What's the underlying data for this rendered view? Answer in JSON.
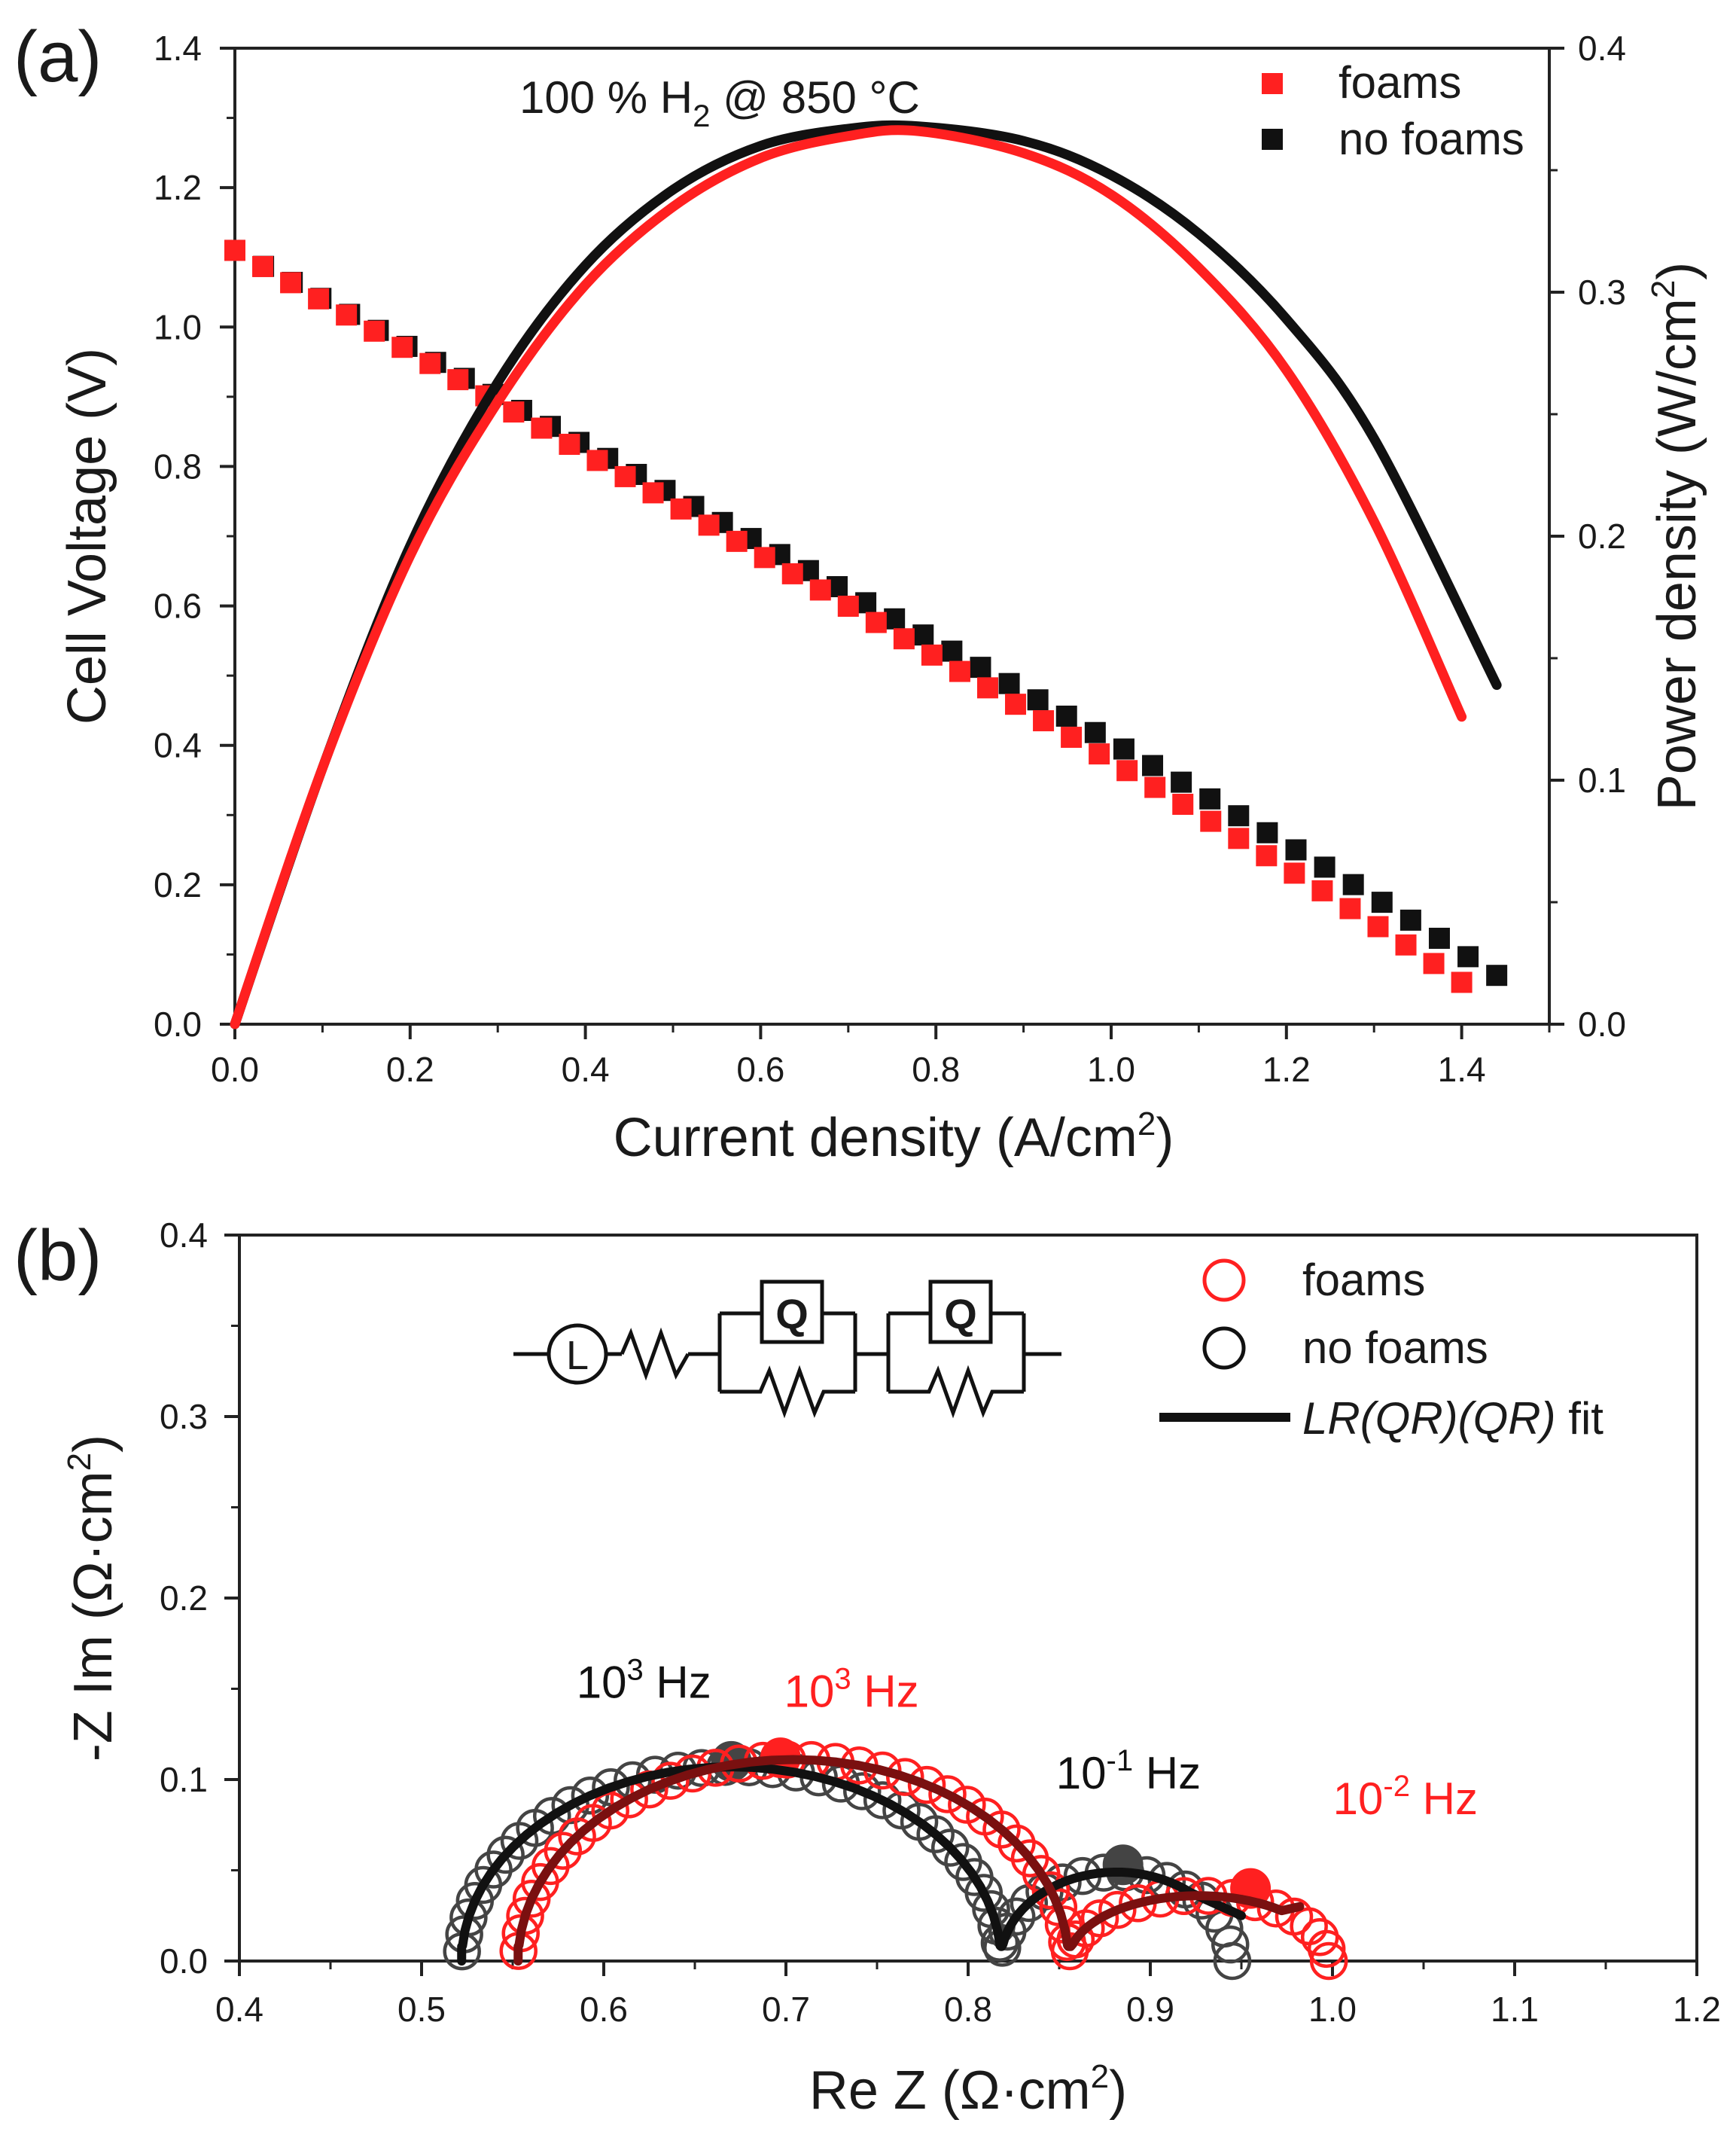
{
  "colors": {
    "foams": "#ff2020",
    "no_foams": "#111111",
    "fit_no_foams": "#111111",
    "fit_foams": "#7a1010",
    "axis": "#222222",
    "nyquist_no_foams_marker": "#444444"
  },
  "chart_data": [
    {
      "panel": "(a)",
      "type": "scatter+line",
      "title": "100 % H2 @ 850 °C",
      "title_parts": {
        "main": "100 % H",
        "sub": "2",
        "rest": " @ 850 °C"
      },
      "xlabel": "Current density (A/cm2)",
      "xlabel_parts": {
        "main": "Current density (A/cm",
        "sup": "2",
        "rest": ")"
      },
      "ylabel": "Cell Voltage (V)",
      "y2label": "Power density (W/cm2)",
      "y2label_parts": {
        "main": "Power density (W/cm",
        "sup": "2",
        "rest": ")"
      },
      "xlim": [
        0.0,
        1.5
      ],
      "ylim": [
        0.0,
        1.4
      ],
      "y2lim": [
        0.0,
        0.4
      ],
      "xticks": [
        "0.0",
        "0.2",
        "0.4",
        "0.6",
        "0.8",
        "1.0",
        "1.2",
        "1.4"
      ],
      "yticks": [
        "0.0",
        "0.2",
        "0.4",
        "0.6",
        "0.8",
        "1.0",
        "1.2",
        "1.4"
      ],
      "y2ticks": [
        "0.0",
        "0.1",
        "0.2",
        "0.3",
        "0.4"
      ],
      "legend": {
        "position": "top-right",
        "entries": [
          "foams",
          "no foams"
        ]
      },
      "series": [
        {
          "name": "foams",
          "kind": "voltage",
          "marker": "square",
          "voc": 1.11,
          "x_end": 1.4,
          "y_end": 0.09,
          "n_points": 45
        },
        {
          "name": "no foams",
          "kind": "voltage",
          "marker": "square",
          "voc": 1.11,
          "x_end": 1.44,
          "y_end": 0.1,
          "n_points": 45
        },
        {
          "name": "foams",
          "kind": "power",
          "x": [
            0.0,
            0.1,
            0.2,
            0.3,
            0.4,
            0.5,
            0.6,
            0.7,
            0.78,
            0.9,
            1.0,
            1.1,
            1.2,
            1.3,
            1.4
          ],
          "y": [
            0.0,
            0.105,
            0.192,
            0.255,
            0.303,
            0.335,
            0.355,
            0.364,
            0.366,
            0.357,
            0.34,
            0.31,
            0.268,
            0.206,
            0.126
          ]
        },
        {
          "name": "no foams",
          "kind": "power",
          "x": [
            0.0,
            0.1,
            0.2,
            0.3,
            0.4,
            0.5,
            0.6,
            0.7,
            0.78,
            0.9,
            1.0,
            1.1,
            1.2,
            1.3,
            1.44
          ],
          "y": [
            0.0,
            0.105,
            0.196,
            0.263,
            0.311,
            0.342,
            0.36,
            0.367,
            0.368,
            0.362,
            0.348,
            0.324,
            0.289,
            0.24,
            0.139
          ]
        }
      ]
    },
    {
      "panel": "(b)",
      "type": "scatter+line",
      "xlabel": "Re Z (Ω·cm2)",
      "xlabel_parts": {
        "main": "Re Z (Ω·cm",
        "sup": "2",
        "rest": ")"
      },
      "ylabel": "-Z Im (Ω·cm2)",
      "ylabel_parts": {
        "main": "-Z Im (Ω·cm",
        "sup": "2",
        "rest": ")"
      },
      "xlim": [
        0.4,
        1.2
      ],
      "ylim": [
        0.0,
        0.4
      ],
      "xticks": [
        "0.4",
        "0.5",
        "0.6",
        "0.7",
        "0.8",
        "0.9",
        "1.0",
        "1.1",
        "1.2"
      ],
      "yticks": [
        "0.0",
        "0.1",
        "0.2",
        "0.3",
        "0.4"
      ],
      "legend": {
        "position": "top-right",
        "entries": [
          "foams",
          "no foams",
          "LR(QR)(QR) fit"
        ]
      },
      "legend_fit_italic": "LR(QR)(QR)",
      "legend_fit_suffix": " fit",
      "circuit": "L R (QR) (QR)",
      "circuit_q_label": "Q",
      "circuit_l_label": "L",
      "series": [
        {
          "name": "no foams",
          "arcs": [
            {
              "x_start": 0.522,
              "x_end": 0.818,
              "apex_y": 0.107
            },
            {
              "x_start": 0.818,
              "x_end": 0.945,
              "apex_y": 0.049
            }
          ],
          "fit_x_end": 0.95,
          "fit_y_end": 0.025,
          "highlight": [
            {
              "x": 0.67,
              "y": 0.11
            },
            {
              "x": 0.885,
              "y": 0.053
            }
          ]
        },
        {
          "name": "foams",
          "arcs": [
            {
              "x_start": 0.553,
              "x_end": 0.855,
              "apex_y": 0.111
            },
            {
              "x_start": 0.855,
              "x_end": 0.998,
              "apex_y": 0.036
            }
          ],
          "fit_x_end": 0.982,
          "fit_y_end": 0.03,
          "highlight": [
            {
              "x": 0.697,
              "y": 0.112
            },
            {
              "x": 0.955,
              "y": 0.04
            }
          ]
        }
      ],
      "annotations": [
        {
          "series": "no foams",
          "base": "10",
          "exp": "3",
          "unit": " Hz",
          "x": 0.622,
          "y": 0.145
        },
        {
          "series": "foams",
          "base": "10",
          "exp": "3",
          "unit": " Hz",
          "x": 0.736,
          "y": 0.14
        },
        {
          "series": "no foams",
          "base": "10",
          "exp": "-1",
          "unit": " Hz",
          "x": 0.888,
          "y": 0.095
        },
        {
          "series": "foams",
          "base": "10",
          "exp": "-2",
          "unit": " Hz",
          "x": 1.04,
          "y": 0.081
        }
      ]
    }
  ]
}
